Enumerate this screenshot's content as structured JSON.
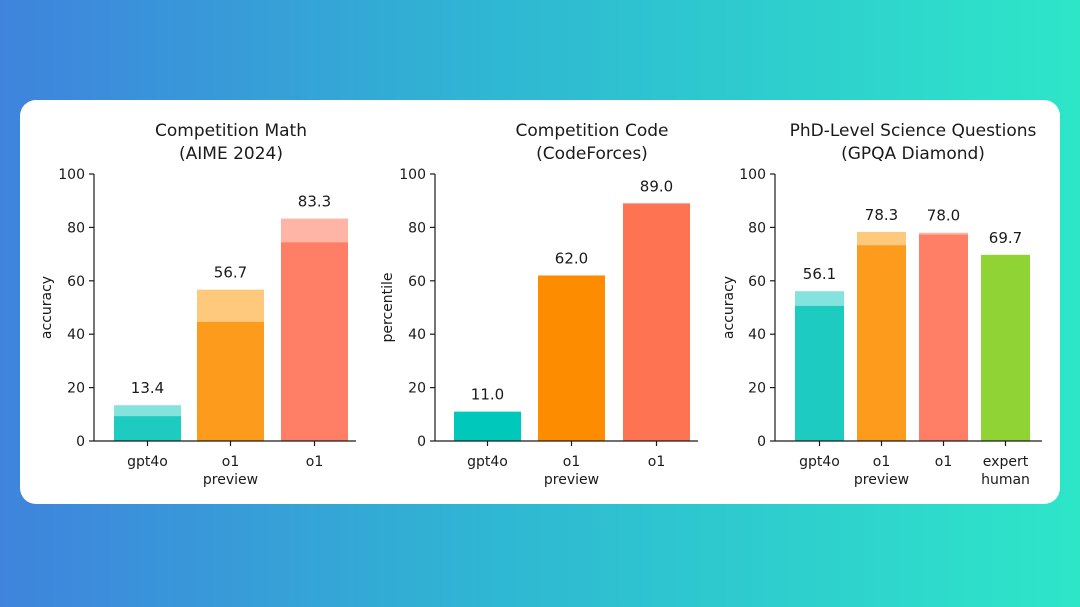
{
  "chart_data": [
    {
      "type": "bar",
      "title": [
        "Competition Math",
        "(AIME 2024)"
      ],
      "ylabel": "accuracy",
      "ylim": [
        0,
        100
      ],
      "yticks": [
        0,
        20,
        40,
        60,
        80,
        100
      ],
      "categories": [
        [
          "gpt4o"
        ],
        [
          "o1",
          "preview"
        ],
        [
          "o1"
        ]
      ],
      "series": [
        {
          "values": [
            9.3,
            44.6,
            74.4
          ]
        },
        {
          "values": [
            13.4,
            56.7,
            83.3
          ]
        }
      ],
      "data_labels": [
        "13.4",
        "56.7",
        "83.3"
      ],
      "colors": {
        "solid": [
          "#1ecbc0",
          "#fd9b1c",
          "#fe7f66"
        ],
        "light": [
          "#84e3dd",
          "#fec97d",
          "#feb5a6"
        ]
      },
      "grid": false
    },
    {
      "type": "bar",
      "title": [
        "Competition Code",
        "(CodeForces)"
      ],
      "ylabel": "percentile",
      "ylim": [
        0,
        100
      ],
      "yticks": [
        0,
        20,
        40,
        60,
        80,
        100
      ],
      "categories": [
        [
          "gpt4o"
        ],
        [
          "o1",
          "preview"
        ],
        [
          "o1"
        ]
      ],
      "series": [
        {
          "values": [
            11.0,
            62.0,
            89.0
          ]
        }
      ],
      "data_labels": [
        "11.0",
        "62.0",
        "89.0"
      ],
      "colors": {
        "solid": [
          "#00c8bb",
          "#fe8c00",
          "#fe7351"
        ],
        "light": [
          "#00c8bb",
          "#fe8c00",
          "#fe7351"
        ]
      },
      "grid": false
    },
    {
      "type": "bar",
      "title": [
        "PhD-Level Science Questions",
        "(GPQA Diamond)"
      ],
      "ylabel": "accuracy",
      "ylim": [
        0,
        100
      ],
      "yticks": [
        0,
        20,
        40,
        60,
        80,
        100
      ],
      "categories": [
        [
          "gpt4o"
        ],
        [
          "o1",
          "preview"
        ],
        [
          "o1"
        ],
        [
          "expert",
          "human"
        ]
      ],
      "series": [
        {
          "values": [
            50.6,
            73.3,
            77.3,
            69.7
          ]
        },
        {
          "values": [
            56.1,
            78.3,
            78.0,
            69.7
          ]
        }
      ],
      "data_labels": [
        "56.1",
        "78.3",
        "78.0",
        "69.7"
      ],
      "colors": {
        "solid": [
          "#1ecbc0",
          "#fd9b1c",
          "#fe7f66",
          "#8fd334"
        ],
        "light": [
          "#84e3dd",
          "#fec97d",
          "#feb5a6",
          "#8fd334"
        ]
      },
      "grid": false
    }
  ]
}
